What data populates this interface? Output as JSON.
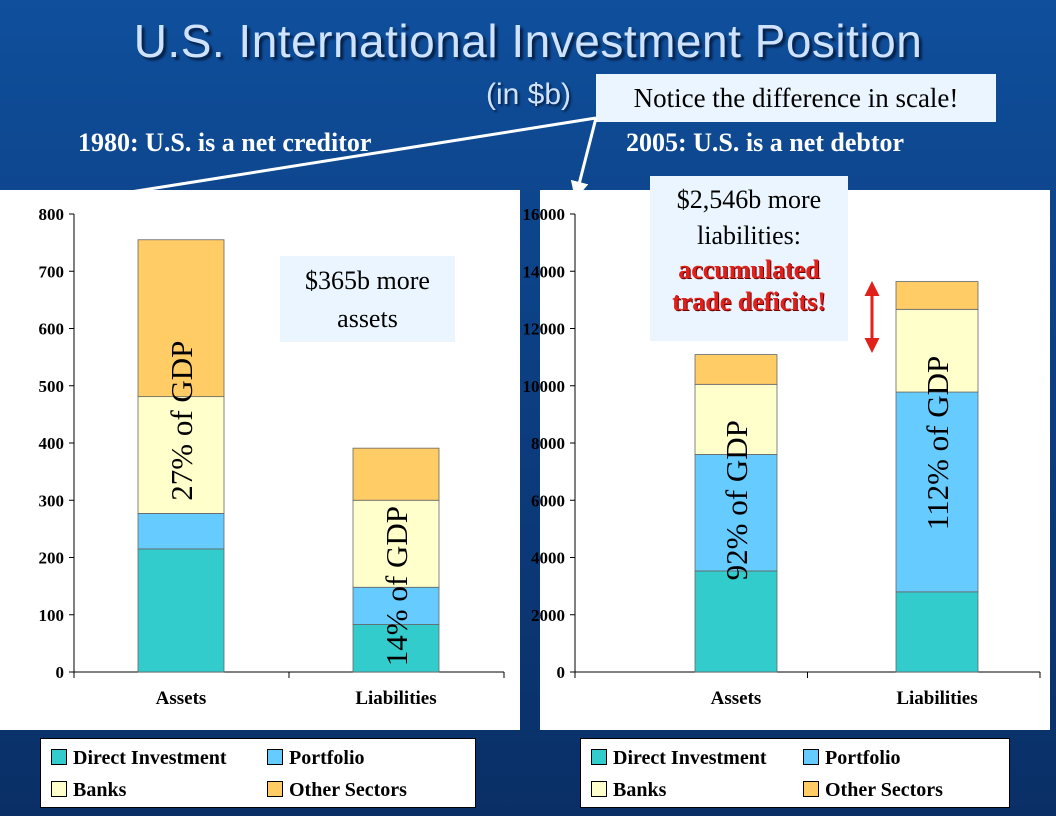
{
  "title": "U.S. International Investment Position",
  "subtitle": "(in $b)",
  "notice": "Notice the difference in scale!",
  "colors": {
    "direct": "#33cccc",
    "portfolio": "#66ccff",
    "banks": "#ffffcc",
    "other": "#ffcc66",
    "accent_red": "#e0201a"
  },
  "chart_data": [
    {
      "type": "bar",
      "stacked": true,
      "heading": "1980: U.S. is a net creditor",
      "categories": [
        "Assets",
        "Liabilities"
      ],
      "ylim": [
        0,
        800
      ],
      "yticks": [
        "0",
        "100",
        "200",
        "300",
        "400",
        "500",
        "600",
        "700",
        "800"
      ],
      "series": [
        {
          "name": "Direct Investment",
          "values": [
            215,
            83
          ]
        },
        {
          "name": "Portfolio",
          "values": [
            62,
            65
          ]
        },
        {
          "name": "Banks",
          "values": [
            204,
            152
          ]
        },
        {
          "name": "Other Sectors",
          "values": [
            274,
            91
          ]
        }
      ],
      "bar_labels": [
        "27% of GDP",
        "14% of GDP"
      ],
      "callout": [
        "$365b more",
        "assets"
      ]
    },
    {
      "type": "bar",
      "stacked": true,
      "heading": "2005: U.S. is a net debtor",
      "categories": [
        "Assets",
        "Liabilities"
      ],
      "ylim": [
        0,
        16000
      ],
      "yticks": [
        "0",
        "2000",
        "4000",
        "6000",
        "8000",
        "10000",
        "12000",
        "14000",
        "16000"
      ],
      "series": [
        {
          "name": "Direct Investment",
          "values": [
            3530,
            2800
          ]
        },
        {
          "name": "Portfolio",
          "values": [
            4070,
            6980
          ]
        },
        {
          "name": "Banks",
          "values": [
            2450,
            2890
          ]
        },
        {
          "name": "Other Sectors",
          "values": [
            1040,
            970
          ]
        }
      ],
      "bar_labels": [
        "92% of GDP",
        "112% of GDP"
      ],
      "callout": [
        "$2,546b more",
        "liabilities:",
        "accumulated",
        "trade deficits!"
      ]
    }
  ]
}
